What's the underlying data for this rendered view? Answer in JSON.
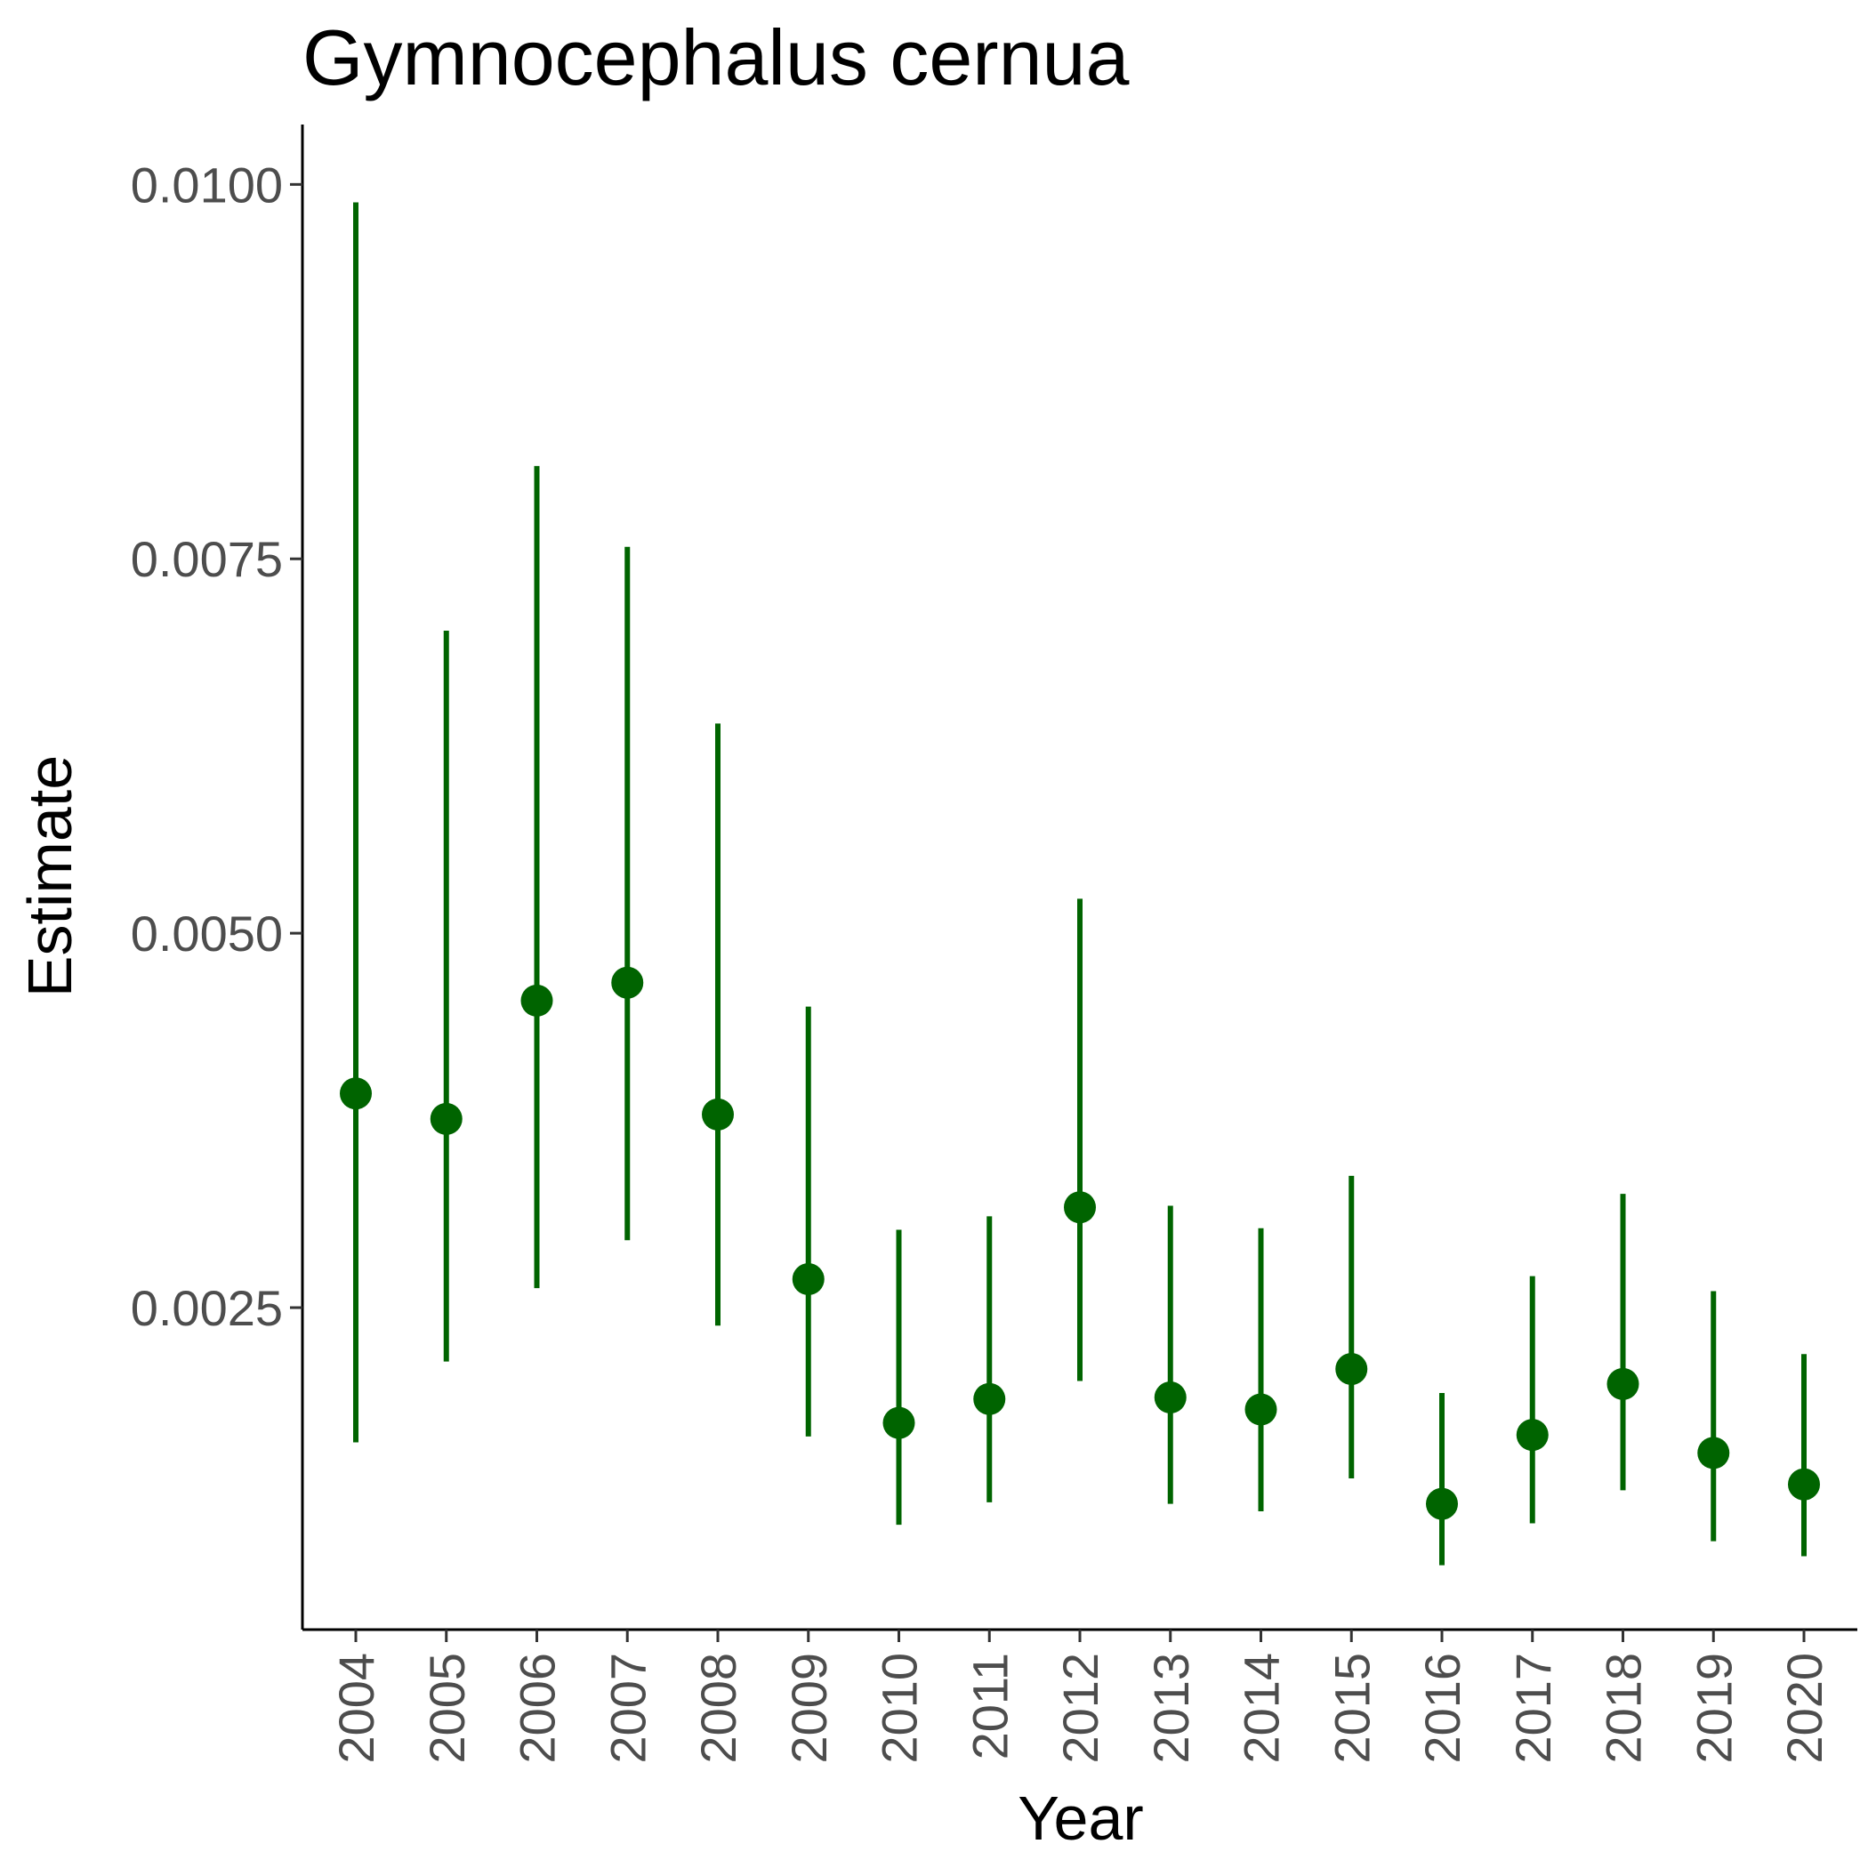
{
  "chart_data": {
    "type": "scatter",
    "title": "Gymnocephalus cernua",
    "xlabel": "Year",
    "ylabel": "Estimate",
    "y_ticks": [
      "0.0025",
      "0.0050",
      "0.0075",
      "0.0100"
    ],
    "y_tick_values": [
      0.0025,
      0.005,
      0.0075,
      0.01
    ],
    "ylim": [
      0.00035,
      0.0104
    ],
    "grid": false,
    "legend": "none",
    "color": "#006400",
    "categories": [
      "2004",
      "2005",
      "2006",
      "2007",
      "2008",
      "2009",
      "2010",
      "2011",
      "2012",
      "2013",
      "2014",
      "2015",
      "2016",
      "2017",
      "2018",
      "2019",
      "2020"
    ],
    "series": [
      {
        "estimate": [
          0.00393,
          0.00376,
          0.00455,
          0.00467,
          0.00379,
          0.00269,
          0.00173,
          0.00189,
          0.00317,
          0.0019,
          0.00182,
          0.00209,
          0.00119,
          0.00165,
          0.00199,
          0.00153,
          0.00132
        ],
        "lower": [
          0.0016,
          0.00214,
          0.00263,
          0.00295,
          0.00238,
          0.00164,
          0.00105,
          0.0012,
          0.00201,
          0.00119,
          0.00114,
          0.00136,
          0.00078,
          0.00106,
          0.00128,
          0.00094,
          0.00084
        ],
        "upper": [
          0.00988,
          0.00702,
          0.00812,
          0.00758,
          0.0064,
          0.00451,
          0.00302,
          0.00311,
          0.00523,
          0.00318,
          0.00303,
          0.00338,
          0.00193,
          0.00271,
          0.00326,
          0.00261,
          0.00219
        ]
      }
    ]
  }
}
